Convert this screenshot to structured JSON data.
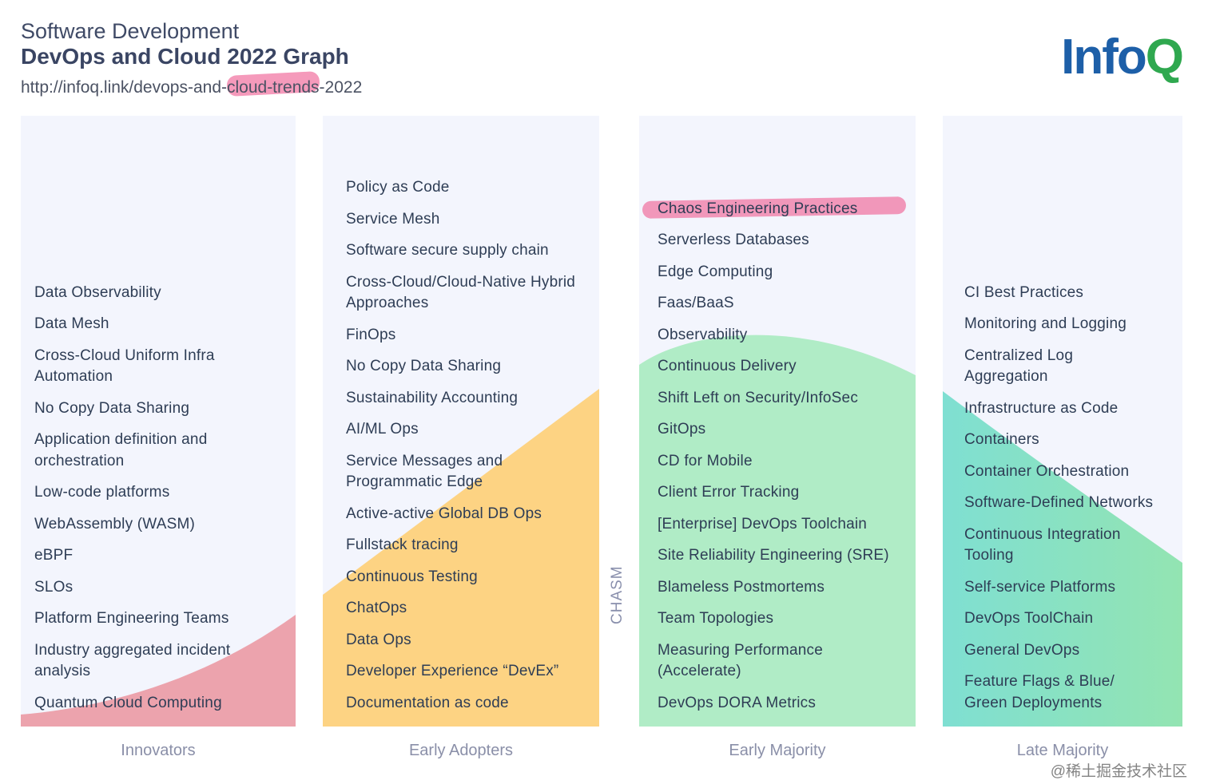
{
  "header": {
    "subtitle": "Software Development",
    "title": "DevOps and Cloud 2022 Graph",
    "url": "http://infoq.link/devops-and-cloud-trends-2022",
    "logo": "InfoQ"
  },
  "colors": {
    "innovators": "#eca3ad",
    "early_adopters": "#fdd383",
    "early_majority": "#b0ecc6",
    "late_majority_start": "#7fdfd2",
    "late_majority_end": "#93e4b2",
    "highlight": "#f06496"
  },
  "columns": [
    {
      "label": "Innovators",
      "items": [
        "Data Observability",
        "Data Mesh",
        "Cross-Cloud Uniform Infra Automation",
        "No Copy Data Sharing",
        "Application definition and orchestration",
        "Low-code platforms",
        "WebAssembly (WASM)",
        "eBPF",
        "SLOs",
        "Platform Engineering Teams",
        "Industry aggregated incident analysis",
        "Quantum Cloud Computing"
      ]
    },
    {
      "label": "Early Adopters",
      "items": [
        "Policy as Code",
        "Service Mesh",
        "Software secure supply chain",
        "Cross-Cloud/Cloud-Native Hybrid Approaches",
        "FinOps",
        "No Copy Data Sharing",
        "Sustainability Accounting",
        "AI/ML Ops",
        "Service Messages and Programmatic Edge",
        "Active-active Global DB Ops",
        "Fullstack tracing",
        "Continuous Testing",
        "ChatOps",
        "Data Ops",
        "Developer Experience “DevEx”",
        "Documentation as code"
      ]
    },
    {
      "label": "Early Majority",
      "items": [
        "Chaos Engineering Practices",
        "Serverless Databases",
        "Edge Computing",
        "Faas/BaaS",
        "Observability",
        "Continuous Delivery",
        "Shift Left on Security/InfoSec",
        "GitOps",
        "CD for Mobile",
        "Client Error Tracking",
        "[Enterprise] DevOps Toolchain",
        "Site Reliability Engineering (SRE)",
        "Blameless Postmortems",
        "Team Topologies",
        "Measuring Performance (Accelerate)",
        "DevOps DORA Metrics"
      ]
    },
    {
      "label": "Late Majority",
      "items": [
        "CI Best Practices",
        "Monitoring and Logging",
        "Centralized Log Aggregation",
        "Infrastructure as Code",
        "Containers",
        "Container Orchestration",
        "Software-Defined Networks",
        "Continuous Integration Tooling",
        "Self-service Platforms",
        "DevOps ToolChain",
        "General DevOps",
        "Feature Flags & Blue/ Green Deployments"
      ]
    }
  ],
  "chasm_label": "CHASM",
  "watermark": "@稀土掘金技术社区"
}
